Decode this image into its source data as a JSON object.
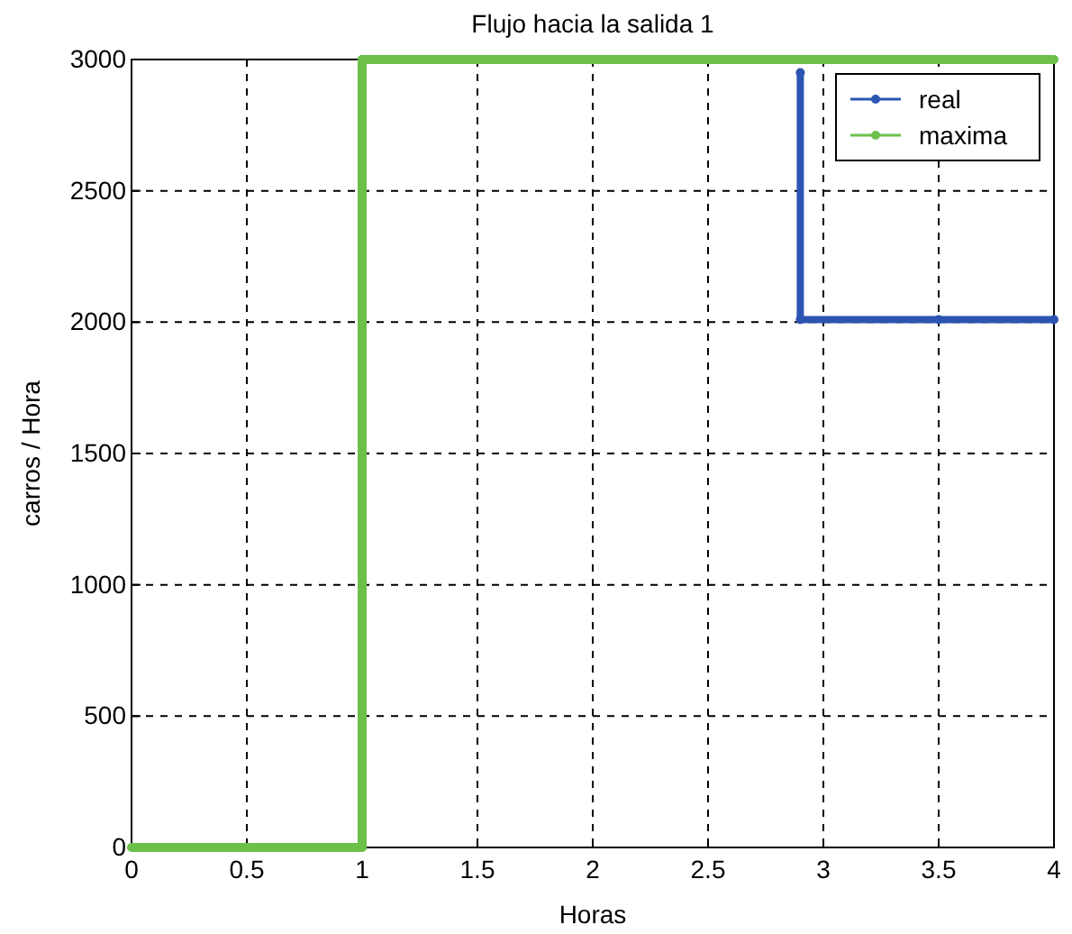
{
  "chart_data": {
    "type": "line",
    "title": "Flujo hacia la salida 1",
    "xlabel": "Horas",
    "ylabel": "carros / Hora",
    "xlim": [
      0,
      4
    ],
    "xticks": [
      0,
      0.5,
      1,
      1.5,
      2,
      2.5,
      3,
      3.5,
      4
    ],
    "ylim": [
      0,
      3000
    ],
    "yticks": [
      0,
      500,
      1000,
      1500,
      2000,
      2500,
      3000
    ],
    "grid": true,
    "legend": "top right",
    "marker": "circle",
    "line_style": "solid",
    "series": [
      {
        "name": "real",
        "color": "#2b55b0",
        "x": [
          2.9,
          2.9,
          3.5,
          4
        ],
        "values": [
          2950,
          2010,
          2010,
          2010
        ]
      },
      {
        "name": "maxima",
        "color": "#6cc04a",
        "x": [
          0,
          0.5,
          1,
          1,
          1.5,
          2,
          2.5,
          3,
          3.5,
          4
        ],
        "values": [
          0,
          0,
          0,
          3000,
          3000,
          3000,
          3000,
          3000,
          3000,
          3000
        ]
      }
    ]
  }
}
